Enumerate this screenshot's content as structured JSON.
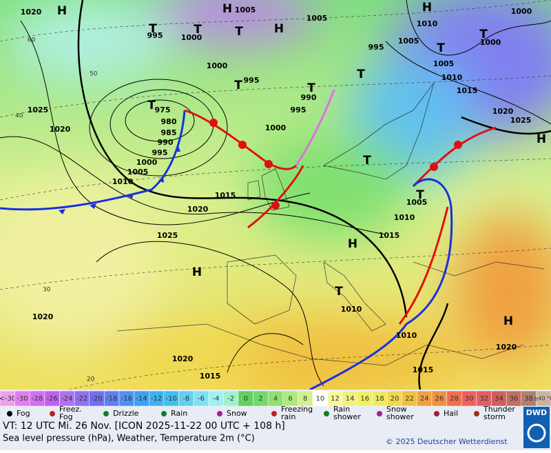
{
  "map": {
    "pressure_labels": [
      1020,
      1005,
      1005,
      1000,
      995,
      1000,
      1000,
      995,
      975,
      980,
      985,
      990,
      995,
      1000,
      1005,
      1010,
      1025,
      1020,
      1000,
      995,
      990,
      1015,
      1020,
      1025,
      1015,
      1010,
      1005,
      1010,
      1010,
      1020,
      1020,
      1020,
      1015,
      1015,
      1010,
      1015,
      1020,
      1025,
      1005,
      1005,
      1010,
      1000,
      995
    ],
    "centers": [
      "H",
      "H",
      "H",
      "H",
      "H",
      "H",
      "H",
      "H",
      "T",
      "T",
      "T",
      "T",
      "T",
      "T",
      "T",
      "T",
      "T",
      "T",
      "T",
      "T"
    ],
    "latitude_labels": [
      "60",
      "50",
      "40",
      "30",
      "20"
    ]
  },
  "legend": {
    "temperature_scale": [
      "<-30",
      "-30",
      "-28",
      "-26",
      "-24",
      "-22",
      "-20",
      "-18",
      "-16",
      "-14",
      "-12",
      "-10",
      "-8",
      "-6",
      "-4",
      "-2",
      "0",
      "2",
      "4",
      "6",
      "8",
      "10",
      "12",
      "14",
      "16",
      "18",
      "20",
      "22",
      "24",
      "26",
      "28",
      "30",
      "32",
      "34",
      "36",
      "38",
      "≥40 °C"
    ],
    "temperature_colors": [
      "#f0a0f0",
      "#e080f0",
      "#d070f0",
      "#c060f0",
      "#b070f0",
      "#9070f0",
      "#7070f0",
      "#6080f0",
      "#5090f0",
      "#40a0f0",
      "#40b0f0",
      "#40c0f0",
      "#60d0f0",
      "#80e0f0",
      "#a0f0f0",
      "#a0f0d0",
      "#60d060",
      "#70d870",
      "#90e070",
      "#b0e880",
      "#d0f090",
      "#ffffff",
      "#f8f8a0",
      "#f0f080",
      "#f0f060",
      "#f0e860",
      "#f0d850",
      "#f0c040",
      "#f0a040",
      "#f09040",
      "#f07050",
      "#f06060",
      "#e06060",
      "#d06060",
      "#c07060",
      "#b08070",
      "#d0b0a0"
    ],
    "weather": [
      "Fog",
      "Freez. Fog",
      "Drizzle",
      "Rain",
      "Snow",
      "Freezing rain",
      "Rain shower",
      "Snow shower",
      "Hail",
      "Thunder storm"
    ]
  },
  "footer": {
    "valid_time": "VT: 12 UTC Mi.  26 Nov. [ICON 2025-11-22  00 UTC + 108 h]",
    "description": "Sea level pressure (hPa), Weather, Temperature 2m (°C)",
    "copyright": "© 2025 Deutscher Wetterdienst",
    "logo": "DWD"
  }
}
